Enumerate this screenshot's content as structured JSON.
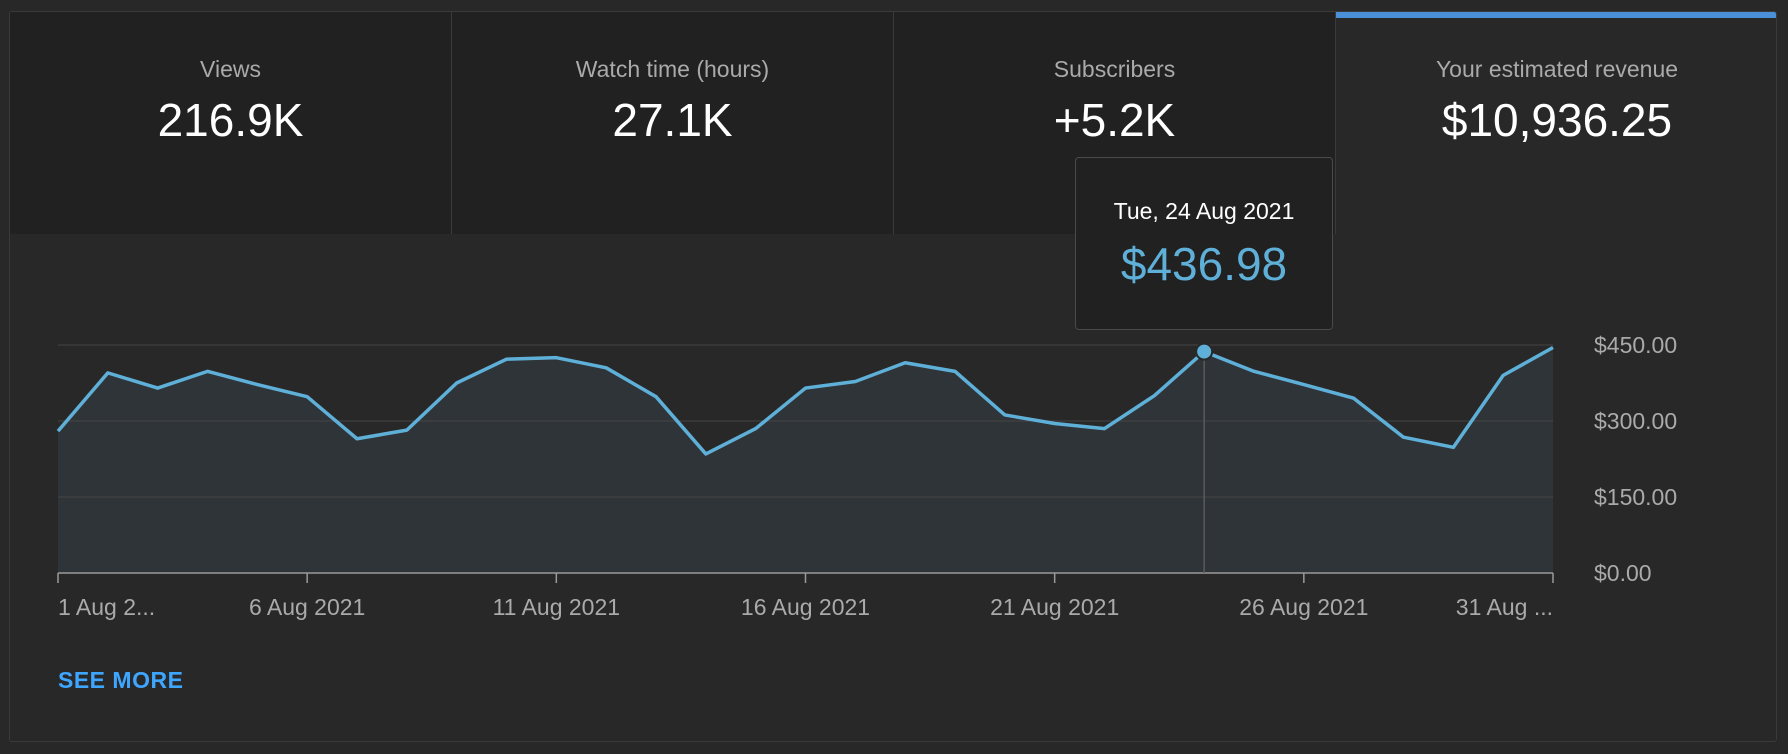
{
  "tabs": [
    {
      "label": "Views",
      "value": "216.9K"
    },
    {
      "label": "Watch time (hours)",
      "value": "27.1K"
    },
    {
      "label": "Subscribers",
      "value": "+5.2K"
    },
    {
      "label": "Your estimated revenue",
      "value": "$10,936.25"
    }
  ],
  "active_tab": 3,
  "tooltip": {
    "date": "Tue, 24 Aug 2021",
    "value": "$436.98"
  },
  "see_more_label": "SEE MORE",
  "colors": {
    "line": "#5fb0d8",
    "accent": "#4a90d9",
    "link": "#3ea6ff"
  },
  "chart_data": {
    "type": "area",
    "x": [
      "1 Aug 2021",
      "2 Aug 2021",
      "3 Aug 2021",
      "4 Aug 2021",
      "5 Aug 2021",
      "6 Aug 2021",
      "7 Aug 2021",
      "8 Aug 2021",
      "9 Aug 2021",
      "10 Aug 2021",
      "11 Aug 2021",
      "12 Aug 2021",
      "13 Aug 2021",
      "14 Aug 2021",
      "15 Aug 2021",
      "16 Aug 2021",
      "17 Aug 2021",
      "18 Aug 2021",
      "19 Aug 2021",
      "20 Aug 2021",
      "21 Aug 2021",
      "22 Aug 2021",
      "23 Aug 2021",
      "24 Aug 2021",
      "25 Aug 2021",
      "26 Aug 2021",
      "27 Aug 2021",
      "28 Aug 2021",
      "29 Aug 2021",
      "30 Aug 2021",
      "31 Aug 2021"
    ],
    "series": [
      {
        "values": [
          280,
          395,
          365,
          398,
          372,
          348,
          265,
          282,
          375,
          422,
          425,
          405,
          348,
          235,
          285,
          365,
          378,
          415,
          398,
          312,
          295,
          285,
          350,
          436.98,
          398,
          372,
          345,
          268,
          248,
          390,
          445
        ]
      }
    ],
    "xticks": [
      "1 Aug 2...",
      "6 Aug 2021",
      "11 Aug 2021",
      "16 Aug 2021",
      "21 Aug 2021",
      "26 Aug 2021",
      "31 Aug ..."
    ],
    "xtick_index": [
      0,
      5,
      10,
      15,
      20,
      25,
      30
    ],
    "yticks": [
      "$0.00",
      "$150.00",
      "$300.00",
      "$450.00"
    ],
    "ytick_values": [
      0,
      150,
      300,
      450
    ],
    "ylim": [
      0,
      450
    ],
    "highlight_index": 23,
    "grid": true
  }
}
